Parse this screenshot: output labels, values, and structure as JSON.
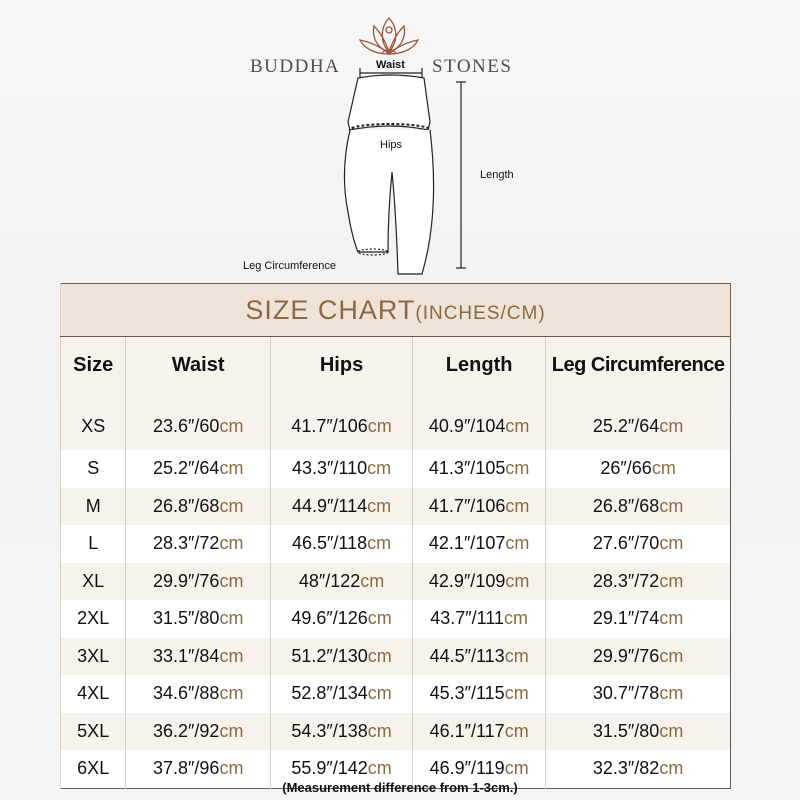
{
  "brand": {
    "left": "BUDDHA",
    "right": "STONES"
  },
  "diagram": {
    "waist": "Waist",
    "hips": "Hips",
    "length": "Length",
    "leg": "Leg Circumference"
  },
  "table": {
    "title": "SIZE CHART",
    "title_units": "(INCHES/CM)",
    "headers": [
      "Size",
      "Waist",
      "Hips",
      "Length",
      "Leg Circumference"
    ],
    "unit_suffix": "cm",
    "rows": [
      [
        "XS",
        "23.6″/60",
        "41.7″/106",
        "40.9″/104",
        "25.2″/64"
      ],
      [
        "S",
        "25.2″/64",
        "43.3″/110",
        "41.3″/105",
        "26″/66"
      ],
      [
        "M",
        "26.8″/68",
        "44.9″/114",
        "41.7″/106",
        "26.8″/68"
      ],
      [
        "L",
        "28.3″/72",
        "46.5″/118",
        "42.1″/107",
        "27.6″/70"
      ],
      [
        "XL",
        "29.9″/76",
        "48″/122",
        "42.9″/109",
        "28.3″/72"
      ],
      [
        "2XL",
        "31.5″/80",
        "49.6″/126",
        "43.7″/111",
        "29.1″/74"
      ],
      [
        "3XL",
        "33.1″/84",
        "51.2″/130",
        "44.5″/113",
        "29.9″/76"
      ],
      [
        "4XL",
        "34.6″/88",
        "52.8″/134",
        "45.3″/115",
        "30.7″/78"
      ],
      [
        "5XL",
        "36.2″/92",
        "54.3″/138",
        "46.1″/117",
        "31.5″/80"
      ],
      [
        "6XL",
        "37.8″/96",
        "55.9″/142",
        "46.9″/119",
        "32.3″/82"
      ]
    ]
  },
  "note": "(Measurement difference from 1-3cm.)",
  "colors": {
    "accent": "#8b6a43",
    "header_bg": "#efe2d6"
  }
}
